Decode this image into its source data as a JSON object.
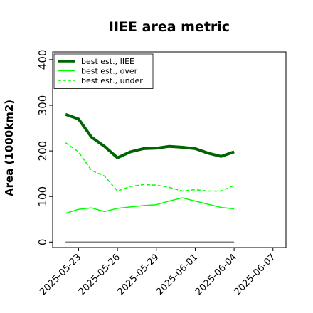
{
  "chart_data": {
    "type": "line",
    "title": "IIEE area metric",
    "xlabel": "",
    "ylabel": "Area (1000km2)",
    "x": [
      "2025-05-22",
      "2025-05-23",
      "2025-05-24",
      "2025-05-25",
      "2025-05-26",
      "2025-05-27",
      "2025-05-28",
      "2025-05-29",
      "2025-05-30",
      "2025-05-31",
      "2025-06-01",
      "2025-06-02",
      "2025-06-03",
      "2025-06-04"
    ],
    "xlim": [
      "2025-05-21",
      "2025-06-08"
    ],
    "xticks": [
      "2025-05-23",
      "2025-05-26",
      "2025-05-29",
      "2025-06-01",
      "2025-06-04",
      "2025-06-07"
    ],
    "ylim": [
      -12,
      417
    ],
    "yticks": [
      0,
      100,
      200,
      300,
      400
    ],
    "grid": false,
    "legend_position": "top-left",
    "series": [
      {
        "name": "best est., IIEE",
        "color": "#006400",
        "dash": "solid",
        "width": 4,
        "values": [
          280,
          270,
          230,
          210,
          185,
          198,
          205,
          206,
          210,
          208,
          205,
          195,
          188,
          198
        ]
      },
      {
        "name": "best est., over",
        "color": "#00ff00",
        "dash": "solid",
        "width": 1.5,
        "values": [
          63,
          72,
          75,
          67,
          74,
          77,
          80,
          82,
          90,
          97,
          90,
          83,
          76,
          73
        ]
      },
      {
        "name": "best est., under",
        "color": "#00ff00",
        "dash": "dashed",
        "width": 1.5,
        "values": [
          218,
          198,
          157,
          145,
          112,
          122,
          126,
          125,
          120,
          112,
          115,
          112,
          112,
          124
        ]
      },
      {
        "name": "",
        "color": "#808080",
        "dash": "solid",
        "width": 1.5,
        "values": [
          0,
          0,
          0,
          0,
          0,
          0,
          0,
          0,
          0,
          0,
          0,
          0,
          0,
          0
        ]
      }
    ]
  }
}
